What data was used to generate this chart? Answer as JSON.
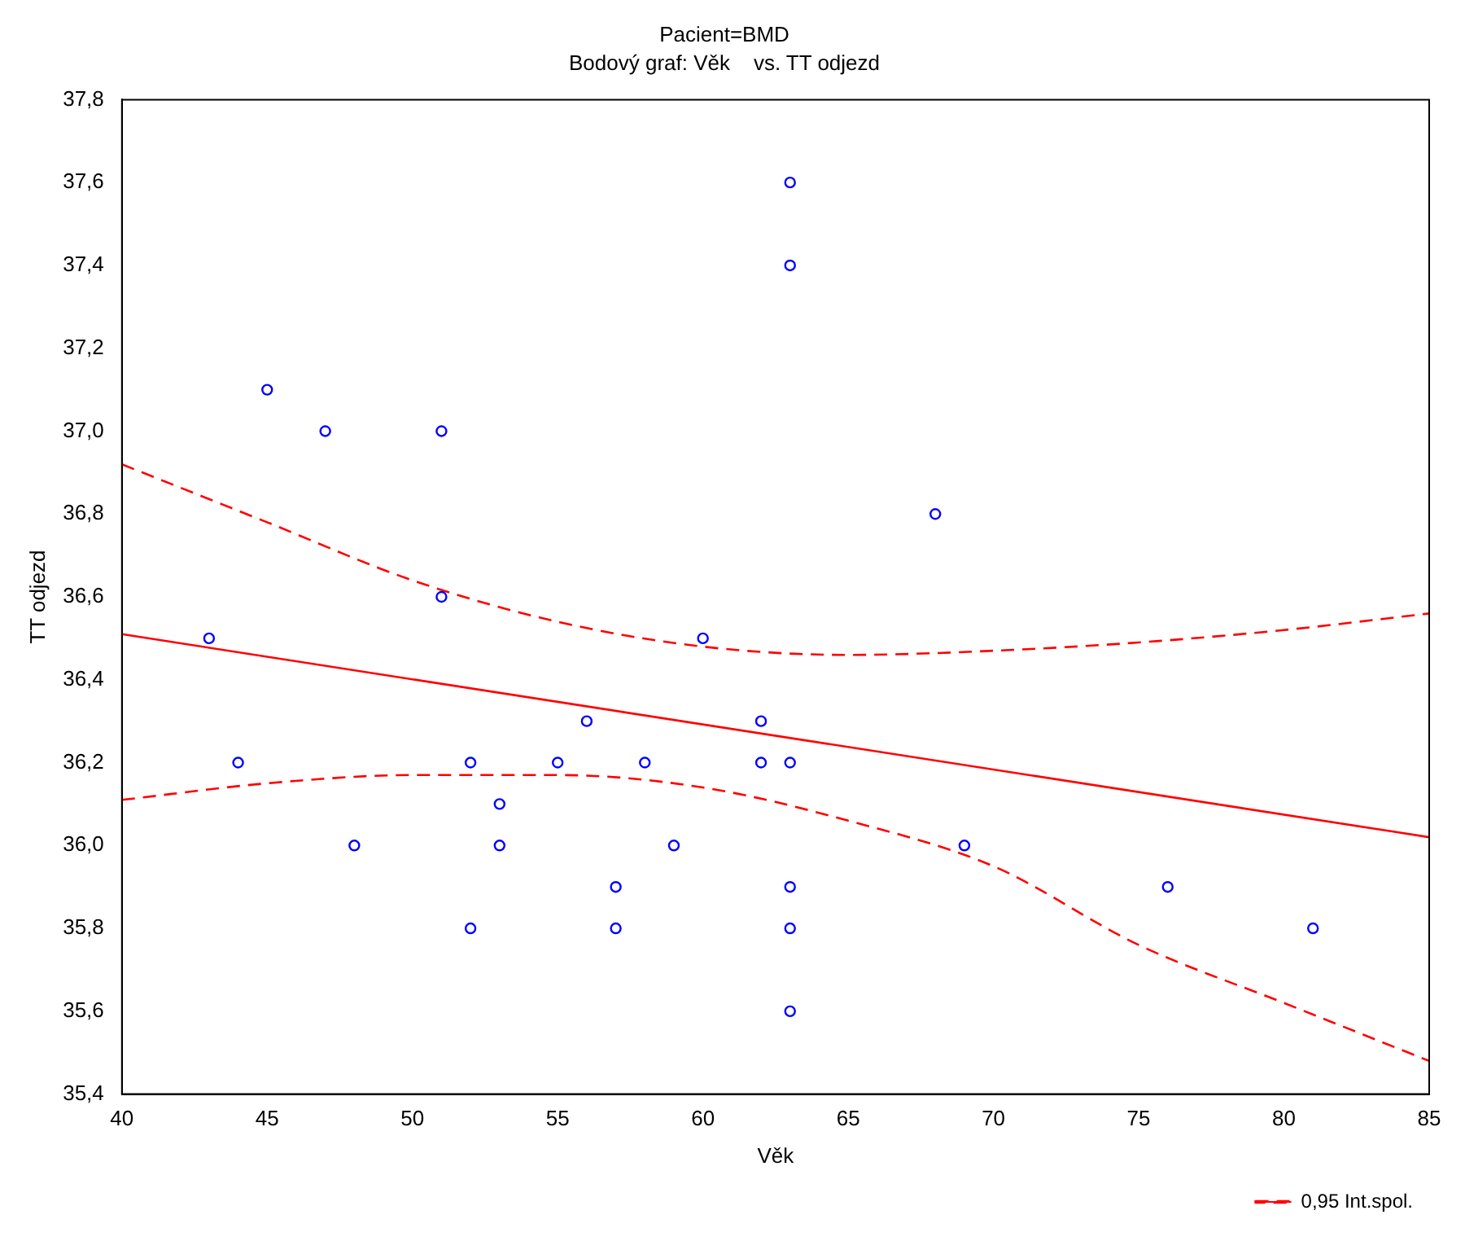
{
  "chart_data": {
    "type": "scatter",
    "title": "Pacient=BMD",
    "subtitle": "Bodový graf: Věk    vs. TT odjezd",
    "xlabel": "Věk",
    "ylabel": "TT odjezd",
    "xlim": [
      40,
      85
    ],
    "xticks": [
      40,
      45,
      50,
      55,
      60,
      65,
      70,
      75,
      80,
      85
    ],
    "ylim": [
      35.4,
      37.8
    ],
    "yticks": [
      {
        "value": 35.4,
        "label": "35,4"
      },
      {
        "value": 35.6,
        "label": "35,6"
      },
      {
        "value": 35.8,
        "label": "35,8"
      },
      {
        "value": 36.0,
        "label": "36,0"
      },
      {
        "value": 36.2,
        "label": "36,2"
      },
      {
        "value": 36.4,
        "label": "36,4"
      },
      {
        "value": 36.6,
        "label": "36,6"
      },
      {
        "value": 36.8,
        "label": "36,8"
      },
      {
        "value": 37.0,
        "label": "37,0"
      },
      {
        "value": 37.2,
        "label": "37,2"
      },
      {
        "value": 37.4,
        "label": "37,4"
      },
      {
        "value": 37.6,
        "label": "37,6"
      },
      {
        "value": 37.8,
        "label": "37,8"
      }
    ],
    "grid": false,
    "legend": "bottom right",
    "series": [
      {
        "type": "scatter",
        "color": "#0000ff",
        "marker": "circle",
        "x": [
          43,
          44,
          45,
          47,
          48,
          51,
          51,
          52,
          52,
          53,
          53,
          55,
          56,
          57,
          57,
          58,
          59,
          60,
          62,
          62,
          63,
          63,
          63,
          63,
          63,
          63,
          68,
          69,
          76,
          81
        ],
        "values": [
          36.5,
          36.2,
          37.1,
          37.0,
          36.0,
          37.0,
          36.6,
          36.2,
          35.8,
          36.1,
          36.0,
          36.2,
          36.3,
          35.9,
          35.8,
          36.2,
          36.0,
          36.5,
          36.3,
          36.2,
          37.6,
          37.4,
          36.2,
          35.9,
          35.8,
          35.6,
          36.8,
          36.0,
          35.9,
          35.8
        ]
      },
      {
        "type": "line",
        "color": "#ff0000",
        "marker": "none",
        "line_style": "solid",
        "x": [
          40,
          85
        ],
        "values": [
          36.51,
          36.02
        ]
      },
      {
        "type": "line",
        "name": "0,95 Int.spol.",
        "color": "#ff0000",
        "marker": "none",
        "line_style": "dashed",
        "x": [
          40,
          45,
          50,
          55,
          60,
          65,
          70,
          75,
          80,
          85
        ],
        "values": [
          36.92,
          36.78,
          36.64,
          36.54,
          36.48,
          36.46,
          36.47,
          36.49,
          36.52,
          36.56
        ]
      },
      {
        "type": "line",
        "color": "#ff0000",
        "marker": "none",
        "line_style": "dashed",
        "x": [
          40,
          45,
          50,
          55,
          60,
          65,
          70,
          75,
          80,
          85
        ],
        "values": [
          36.11,
          36.15,
          36.17,
          36.17,
          36.14,
          36.06,
          35.95,
          35.76,
          35.62,
          35.48
        ]
      }
    ]
  }
}
